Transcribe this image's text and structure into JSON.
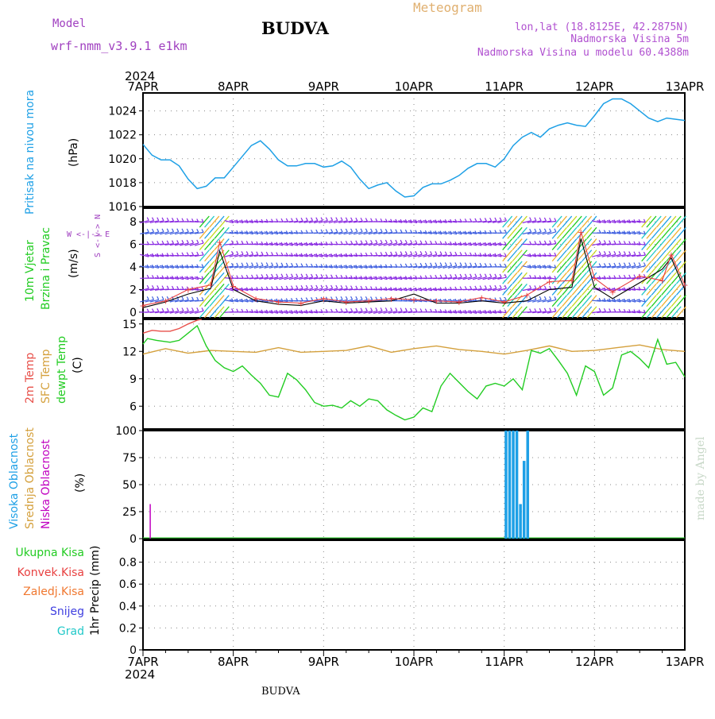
{
  "header": {
    "model_label": "Model",
    "model_name": "wrf-nmm_v3.9.1 e1km",
    "title": "BUDVA",
    "meteogram_label": "Meteogram",
    "coords": "lon,lat (18.8125E, 42.2875N)",
    "elevation": "Nadmorska Visina 5m",
    "model_elevation": "Nadmorska Visina u modelu 60.4388m",
    "footer": "BUDVA",
    "watermark": "made by Angel"
  },
  "colors": {
    "pressure": "#1ea0e6",
    "temp2m": "#e8504a",
    "sfc": "#d4a03c",
    "dew": "#22cc22",
    "wind_purple": "#8a2be2",
    "high_cloud": "#1ea0e6",
    "mid_cloud": "#d4a03c",
    "low_cloud": "#c000c0",
    "rain_total": "#22cc22",
    "rain_conv": "#e84040",
    "rain_frz": "#f07830",
    "snow": "#4040e0",
    "hail": "#20c8c8"
  },
  "time_axis": {
    "year": "2024",
    "labels": [
      "7APR",
      "8APR",
      "9APR",
      "10APR",
      "11APR",
      "12APR",
      "13APR"
    ]
  },
  "chart_data": [
    {
      "id": "pressure",
      "type": "line",
      "ylabel_main": "Pritisak na nivou mora",
      "ylabel_unit": "(hPa)",
      "ylim": [
        1016,
        1025.5
      ],
      "yticks": [
        1016,
        1018,
        1020,
        1022,
        1024
      ],
      "grid": true,
      "x": [
        0,
        0.1,
        0.2,
        0.3,
        0.4,
        0.5,
        0.6,
        0.7,
        0.8,
        0.9,
        1.0,
        1.1,
        1.2,
        1.3,
        1.4,
        1.5,
        1.6,
        1.7,
        1.8,
        1.9,
        2.0,
        2.1,
        2.2,
        2.3,
        2.4,
        2.5,
        2.6,
        2.7,
        2.8,
        2.9,
        3.0,
        3.1,
        3.2,
        3.3,
        3.4,
        3.5,
        3.6,
        3.7,
        3.8,
        3.9,
        4.0,
        4.1,
        4.2,
        4.3,
        4.4,
        4.5,
        4.6,
        4.7,
        4.8,
        4.9,
        5.0,
        5.1,
        5.2,
        5.3,
        5.4,
        5.5,
        5.6,
        5.7,
        5.8,
        5.9,
        6.0
      ],
      "y": [
        1021.2,
        1020.3,
        1019.9,
        1019.9,
        1019.4,
        1018.3,
        1017.5,
        1017.7,
        1018.4,
        1018.4,
        1019.3,
        1020.2,
        1021.1,
        1021.5,
        1020.8,
        1019.9,
        1019.4,
        1019.4,
        1019.6,
        1019.6,
        1019.3,
        1019.4,
        1019.8,
        1019.3,
        1018.3,
        1017.5,
        1017.8,
        1018.0,
        1017.3,
        1016.8,
        1016.9,
        1017.6,
        1017.9,
        1017.9,
        1018.2,
        1018.6,
        1019.2,
        1019.6,
        1019.6,
        1019.3,
        1020.0,
        1021.1,
        1021.8,
        1022.2,
        1021.8,
        1022.5,
        1022.8,
        1023.0,
        1022.8,
        1022.7,
        1023.6,
        1024.6,
        1025.0,
        1025.0,
        1024.6,
        1024.0,
        1023.4,
        1023.1,
        1023.4,
        1023.3,
        1023.2
      ]
    },
    {
      "id": "wind",
      "type": "line",
      "ylabel_main": "10m Vjetar",
      "ylabel_sub": "Brzina i Pravac",
      "ylabel_unit": "(m/s)",
      "compass": "W <-|-> E",
      "compass_ns": "S <-|-> N",
      "ylim": [
        -0.5,
        9.2
      ],
      "yticks": [
        0,
        2,
        4,
        6,
        8
      ],
      "barb_levels": [
        0,
        1,
        2,
        3,
        4,
        5,
        6,
        7,
        8,
        9
      ],
      "x": [
        0,
        0.25,
        0.5,
        0.75,
        0.85,
        1.0,
        1.25,
        1.5,
        1.75,
        2.0,
        2.25,
        2.5,
        2.75,
        3.0,
        3.25,
        3.5,
        3.75,
        4.0,
        4.25,
        4.5,
        4.75,
        4.85,
        5.0,
        5.2,
        5.5,
        5.75,
        5.85,
        6.0
      ],
      "speed": [
        0.6,
        1.0,
        2.0,
        2.4,
        6.2,
        2.3,
        1.2,
        0.9,
        0.8,
        1.2,
        0.9,
        1.0,
        1.2,
        1.1,
        1.0,
        0.9,
        1.3,
        0.9,
        1.5,
        2.7,
        2.8,
        7.1,
        3.0,
        1.8,
        3.2,
        2.8,
        5.1,
        2.4
      ],
      "gust": [
        0.4,
        0.9,
        1.6,
        2.1,
        5.4,
        2.0,
        1.0,
        0.7,
        0.6,
        1.0,
        0.8,
        0.9,
        1.0,
        1.6,
        0.8,
        0.8,
        1.0,
        0.8,
        1.0,
        2.0,
        2.2,
        6.5,
        2.2,
        1.2,
        2.6,
        3.8,
        4.8,
        2.0
      ]
    },
    {
      "id": "temperature",
      "type": "line",
      "ylabel_lines": [
        "2m Temp",
        "SFC Temp",
        "dewpt Temp"
      ],
      "ylabel_unit": "(C)",
      "ylim": [
        3.5,
        15.5
      ],
      "yticks": [
        6,
        9,
        12,
        15
      ],
      "series": [
        {
          "name": "2m Temp",
          "x": [
            0,
            0.1,
            0.2,
            0.3,
            0.4,
            0.5,
            0.6,
            0.65
          ],
          "y": [
            14.0,
            14.3,
            14.2,
            14.2,
            14.5,
            15.0,
            15.4,
            16.0
          ]
        },
        {
          "name": "SFC Temp",
          "x": [
            0,
            0.25,
            0.5,
            0.75,
            1.0,
            1.25,
            1.5,
            1.75,
            2.0,
            2.25,
            2.5,
            2.75,
            3.0,
            3.25,
            3.5,
            3.75,
            4.0,
            4.25,
            4.5,
            4.75,
            5.0,
            5.25,
            5.5,
            5.75,
            6.0
          ],
          "y": [
            11.7,
            12.3,
            11.8,
            12.1,
            12.0,
            11.9,
            12.4,
            11.9,
            12.0,
            12.1,
            12.6,
            11.9,
            12.3,
            12.6,
            12.2,
            12.0,
            11.7,
            12.1,
            12.6,
            12.0,
            12.1,
            12.4,
            12.7,
            12.2,
            12.0
          ]
        },
        {
          "name": "dewpt Temp",
          "x": [
            0,
            0.05,
            0.15,
            0.3,
            0.4,
            0.5,
            0.6,
            0.7,
            0.8,
            0.9,
            1.0,
            1.1,
            1.2,
            1.3,
            1.4,
            1.5,
            1.6,
            1.7,
            1.8,
            1.9,
            2.0,
            2.1,
            2.2,
            2.3,
            2.4,
            2.5,
            2.6,
            2.7,
            2.8,
            2.9,
            3.0,
            3.1,
            3.2,
            3.3,
            3.4,
            3.5,
            3.6,
            3.7,
            3.8,
            3.9,
            4.0,
            4.1,
            4.2,
            4.3,
            4.4,
            4.5,
            4.6,
            4.7,
            4.8,
            4.9,
            5.0,
            5.1,
            5.2,
            5.3,
            5.4,
            5.5,
            5.6,
            5.7,
            5.8,
            5.9,
            6.0
          ],
          "y": [
            12.8,
            13.4,
            13.2,
            13.0,
            13.2,
            14.0,
            14.8,
            12.6,
            11.0,
            10.2,
            9.8,
            10.4,
            9.4,
            8.5,
            7.2,
            7.0,
            9.6,
            8.9,
            7.8,
            6.4,
            6.0,
            6.1,
            5.8,
            6.6,
            6.0,
            6.8,
            6.6,
            5.6,
            5.0,
            4.5,
            4.8,
            5.8,
            5.4,
            8.2,
            9.6,
            8.6,
            7.6,
            6.8,
            8.2,
            8.5,
            8.2,
            9.0,
            7.8,
            12.1,
            11.8,
            12.3,
            11.0,
            9.6,
            7.2,
            10.4,
            9.8,
            7.2,
            8.0,
            11.6,
            12.0,
            11.2,
            10.2,
            13.3,
            10.6,
            10.8,
            9.2
          ]
        }
      ]
    },
    {
      "id": "clouds",
      "type": "bar",
      "ylabel_lines": [
        "Visoka Oblacnost",
        "Srednja Oblacnost",
        "Niska Oblacnost"
      ],
      "ylabel_unit": "(%)",
      "ylim": [
        0,
        100
      ],
      "yticks": [
        0,
        25,
        50,
        75,
        100
      ],
      "series": [
        {
          "name": "Visoka Oblacnost",
          "x": [
            4.02,
            4.06,
            4.1,
            4.14,
            4.18,
            4.22,
            4.26
          ],
          "values": [
            100,
            100,
            100,
            100,
            32,
            72,
            100
          ]
        },
        {
          "name": "Niska Oblacnost",
          "x": [
            0.08
          ],
          "values": [
            32
          ]
        }
      ]
    },
    {
      "id": "precip",
      "type": "bar",
      "ylabel_lines": [
        "Ukupna Kisa",
        "Konvek.Kisa",
        "Zaledj.Kisa",
        "Snijeg",
        "Grad"
      ],
      "ylabel_unit": "1hr Precip (mm)",
      "ylim": [
        0,
        1.0
      ],
      "yticks": [
        0,
        0.2,
        0.4,
        0.6,
        0.8
      ],
      "series": []
    }
  ]
}
